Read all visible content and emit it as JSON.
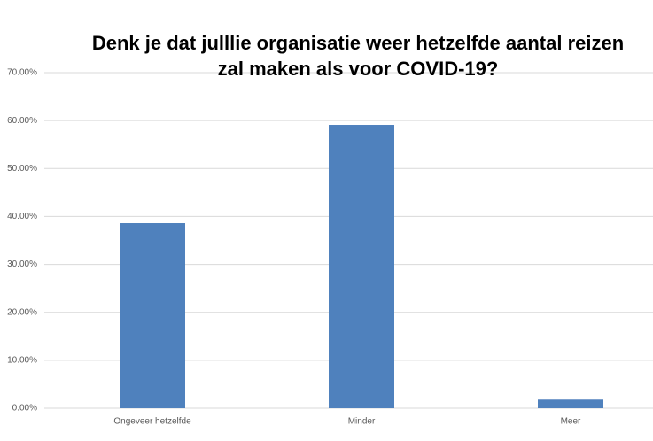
{
  "chart_data": {
    "type": "bar",
    "title": "Denk je dat julllie organisatie weer hetzelfde aantal reizen zal maken als voor COVID-19?",
    "categories": [
      "Ongeveer hetzelfde",
      "Minder",
      "Meer"
    ],
    "values": [
      38.6,
      59.1,
      1.8
    ],
    "color": "#4f81bd",
    "ylim": [
      0,
      70
    ],
    "yticks": [
      {
        "value": 0,
        "label": "0.00%"
      },
      {
        "value": 10,
        "label": "10.00%"
      },
      {
        "value": 20,
        "label": "20.00%"
      },
      {
        "value": 30,
        "label": "30.00%"
      },
      {
        "value": 40,
        "label": "40.00%"
      },
      {
        "value": 50,
        "label": "50.00%"
      },
      {
        "value": 60,
        "label": "60.00%"
      },
      {
        "value": 70,
        "label": "70.00%"
      }
    ],
    "grid": true
  }
}
